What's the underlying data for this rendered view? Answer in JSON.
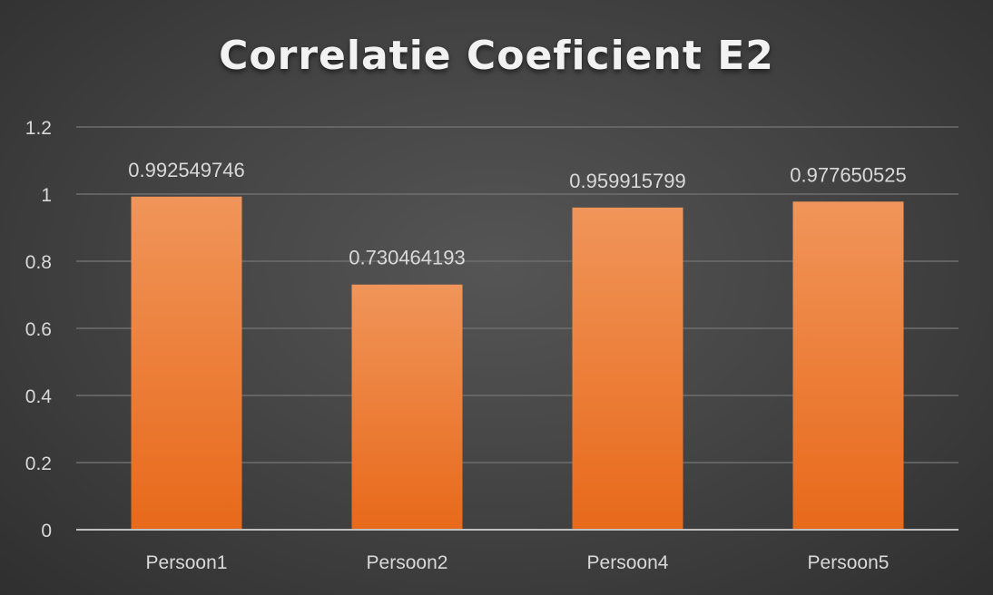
{
  "chart_data": {
    "type": "bar",
    "title": "Correlatie Coeficient E2",
    "categories": [
      "Persoon1",
      "Persoon2",
      "Persoon4",
      "Persoon5"
    ],
    "values": [
      0.992549746,
      0.730464193,
      0.959915799,
      0.977650525
    ],
    "data_labels": [
      "0.992549746",
      "0.730464193",
      "0.959915799",
      "0.977650525"
    ],
    "y_ticks": [
      "0",
      "0.2",
      "0.4",
      "0.6",
      "0.8",
      "1",
      "1.2"
    ],
    "ylim": [
      0,
      1.2
    ],
    "grid": true,
    "legend": "none",
    "xlabel": "",
    "ylabel": "",
    "colors": {
      "bar_top": "#F0955A",
      "bar_bottom": "#E8691A",
      "gridline": "#6e6e6e",
      "axis": "#bfbfbf",
      "background": "#454545"
    }
  }
}
